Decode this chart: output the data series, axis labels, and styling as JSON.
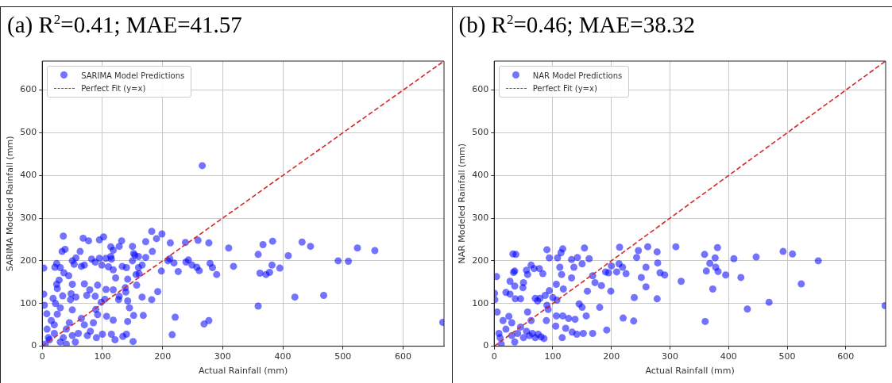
{
  "chart_data": [
    {
      "type": "scatter",
      "title": "(a) R$^{2}$=0.41; MAE=41.57",
      "xlabel": "Actual Rainfall (mm)",
      "ylabel": "SARIMA Modeled Rainfall (mm)",
      "xlim": [
        0,
        668
      ],
      "ylim": [
        0,
        668
      ],
      "xticks": [
        0,
        100,
        200,
        300,
        400,
        500,
        600
      ],
      "yticks": [
        0,
        100,
        200,
        300,
        400,
        500,
        600
      ],
      "grid": true,
      "legend": "top left",
      "marker": "circle",
      "series": [
        {
          "name": "SARIMA Model Predictions",
          "color": "#0000ff",
          "x": [
            266,
            182,
            199,
            35,
            102,
            68,
            95,
            77,
            132,
            172,
            190,
            213,
            238,
            259,
            277,
            383,
            432,
            446,
            367,
            310,
            524,
            553,
            359,
            409,
            492,
            509,
            382,
            395,
            378,
            372,
            362,
            318,
            290,
            279,
            283,
            261,
            226,
            219,
            212,
            209,
            198,
            239,
            243,
            249,
            257,
            150,
            128,
            114,
            118,
            114,
            106,
            115,
            95,
            82,
            88,
            63,
            56,
            50,
            53,
            33,
            38,
            65,
            70,
            21,
            30,
            24,
            2.5,
            36,
            44,
            99,
            110,
            118,
            133,
            140,
            152,
            154,
            160,
            150,
            160,
            156,
            166,
            161,
            172,
            183,
            122,
            106,
            118,
            142,
            138,
            157,
            192,
            182,
            166,
            139,
            104,
            24,
            25,
            28,
            18,
            50,
            79,
            92,
            70,
            74,
            2.5,
            3.5,
            7.5,
            34,
            48,
            56,
            47,
            88,
            127,
            128,
            145,
            142,
            152,
            168,
            142,
            221,
            277,
            269,
            216,
            151,
            121,
            134,
            140,
            115,
            100,
            118,
            107,
            92,
            89,
            98,
            359,
            420,
            468,
            666,
            10,
            20,
            30,
            40,
            50,
            15,
            25,
            5,
            60,
            45,
            35,
            70,
            55,
            80,
            8,
            20,
            65,
            30,
            12,
            40,
            75,
            85,
            50,
            22,
            90
          ],
          "values": [
            423,
            269,
            263,
            258,
            256,
            253,
            249,
            247,
            247,
            245,
            252,
            242,
            243,
            248,
            242,
            246,
            244,
            234,
            238,
            230,
            230,
            224,
            215,
            212,
            200,
            199,
            190,
            183,
            173,
            168,
            171,
            187,
            168,
            194,
            184,
            177,
            175,
            195,
            205,
            200,
            176,
            197,
            202,
            190,
            185,
            234,
            234,
            233,
            225,
            210,
            206,
            204,
            206,
            204,
            197,
            222,
            207,
            200,
            192,
            222,
            227,
            187,
            190,
            185,
            184,
            194,
            183,
            172,
            165,
            190,
            186,
            179,
            187,
            184,
            217,
            213,
            210,
            200,
            184,
            168,
            190,
            170,
            208,
            222,
            160,
            133,
            132,
            157,
            137,
            143,
            128,
            109,
            115,
            127,
            110,
            145,
            135,
            155,
            112,
            145,
            132,
            143,
            146,
            119,
            122,
            96,
            76,
            118,
            123,
            115,
            109,
            117,
            109,
            117,
            90,
            106,
            72,
            72,
            58,
            68,
            60,
            52,
            27,
            11,
            15,
            23,
            28,
            28,
            28,
            61,
            70,
            74,
            86,
            103,
            94,
            115,
            119,
            56,
            20,
            30,
            10,
            40,
            25,
            60,
            75,
            5,
            30,
            55,
            20,
            50,
            10,
            35,
            40,
            50,
            65,
            90,
            15,
            5,
            25,
            55,
            85,
            100,
            20
          ]
        },
        {
          "name": "Perfect Fit (y=x)",
          "color": "#d62728",
          "type": "line",
          "line_style": "dashed",
          "marker": "none",
          "x": [
            0,
            668
          ],
          "values": [
            0,
            668
          ]
        }
      ]
    },
    {
      "type": "scatter",
      "title": "(b) R$^{2}$=0.46; MAE=38.32",
      "xlabel": "Actual Rainfall (mm)",
      "ylabel": "NAR Modeled Rainfall (mm)",
      "xlim": [
        0,
        668
      ],
      "ylim": [
        0,
        668
      ],
      "xticks": [
        0,
        100,
        200,
        300,
        400,
        500,
        600
      ],
      "yticks": [
        0,
        100,
        200,
        300,
        400,
        500,
        600
      ],
      "grid": true,
      "legend": "top left",
      "marker": "circle",
      "series": [
        {
          "name": "NAR Model Predictions",
          "color": "#0000ff",
          "x": [
            32,
            37,
            4,
            90,
            117,
            114,
            94,
            108,
            154,
            142,
            132,
            150,
            162,
            214,
            246,
            262,
            278,
            310,
            381,
            359,
            377,
            409,
            447,
            493,
            509,
            553,
            243,
            259,
            279,
            213,
            219,
            225,
            209,
            195,
            190,
            200,
            283,
            291,
            251,
            319,
            259,
            362,
            368,
            378,
            382,
            395,
            421,
            373,
            524,
            469,
            432,
            360,
            667,
            239,
            278,
            220,
            238,
            199,
            192,
            180,
            183,
            172,
            168,
            159,
            157,
            152,
            168,
            141,
            133,
            116,
            122,
            117,
            127,
            138,
            145,
            150,
            105,
            106,
            100,
            107,
            106,
            118,
            132,
            136,
            112,
            115,
            83,
            77,
            63,
            68,
            55,
            57,
            35,
            33,
            27,
            35,
            20,
            50,
            49,
            27,
            36,
            45,
            70,
            78,
            74,
            94,
            87,
            90,
            92,
            89,
            57,
            63,
            0.5,
            1,
            10,
            20,
            30,
            40,
            50,
            60,
            70,
            80,
            85,
            15,
            5,
            25,
            35,
            45,
            55,
            12,
            30,
            65,
            75,
            8
          ],
          "values": [
            216,
            215,
            163,
            226,
            228,
            219,
            207,
            207,
            230,
            208,
            203,
            193,
            205,
            232,
            224,
            233,
            221,
            233,
            231,
            215,
            207,
            205,
            209,
            222,
            216,
            200,
            208,
            185,
            195,
            193,
            185,
            170,
            174,
            172,
            174,
            188,
            172,
            167,
            161,
            152,
            139,
            176,
            194,
            185,
            175,
            167,
            161,
            134,
            146,
            103,
            87,
            58,
            95,
            114,
            111,
            66,
            59,
            129,
            38,
            91,
            142,
            149,
            165,
            129,
            71,
            30,
            30,
            28,
            33,
            20,
            42,
            71,
            65,
            63,
            99,
            91,
            47,
            71,
            114,
            108,
            145,
            134,
            160,
            185,
            185,
            168,
            170,
            182,
            190,
            182,
            178,
            168,
            176,
            173,
            152,
            141,
            126,
            149,
            137,
            122,
            111,
            111,
            112,
            112,
            106,
            130,
            119,
            96,
            86,
            60,
            80,
            60,
            124,
            109,
            20,
            40,
            25,
            30,
            20,
            25,
            20,
            22,
            18,
            60,
            80,
            70,
            10,
            45,
            35,
            5,
            55,
            30,
            28,
            30
          ]
        },
        {
          "name": "Perfect Fit (y=x)",
          "color": "#d62728",
          "type": "line",
          "line_style": "dashed",
          "marker": "none",
          "x": [
            0,
            668
          ],
          "values": [
            0,
            668
          ]
        }
      ]
    }
  ]
}
